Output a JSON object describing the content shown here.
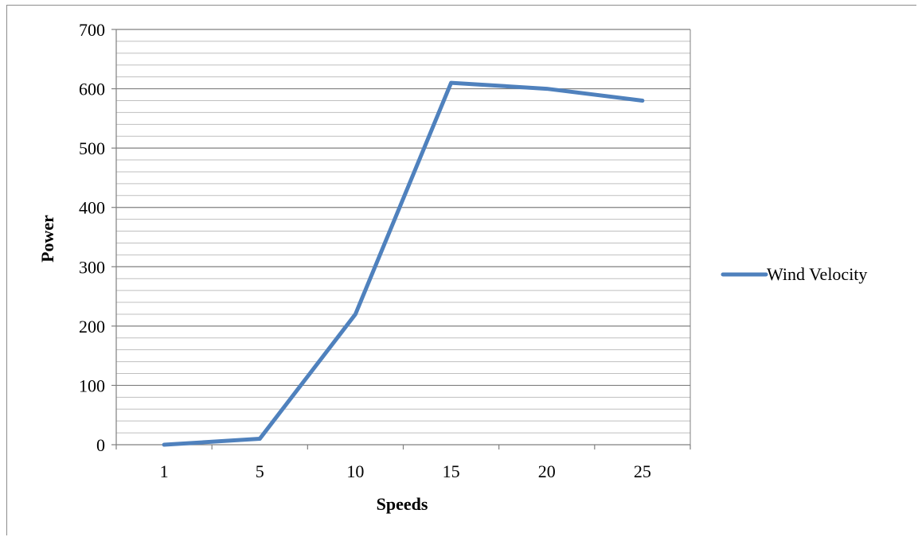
{
  "chart_data": {
    "type": "line",
    "title": "",
    "xlabel": "Speeds",
    "ylabel": "Power",
    "categories": [
      "1",
      "5",
      "10",
      "15",
      "20",
      "25"
    ],
    "series": [
      {
        "name": "Wind Velocity",
        "values": [
          0,
          10,
          220,
          610,
          600,
          580
        ],
        "color": "#4f81bd"
      }
    ],
    "ylim": [
      0,
      700
    ],
    "y_ticks": [
      "0",
      "100",
      "200",
      "300",
      "400",
      "500",
      "600",
      "700"
    ],
    "y_major_step": 100,
    "y_minor_step": 20,
    "grid": true,
    "legend_position": "right"
  }
}
